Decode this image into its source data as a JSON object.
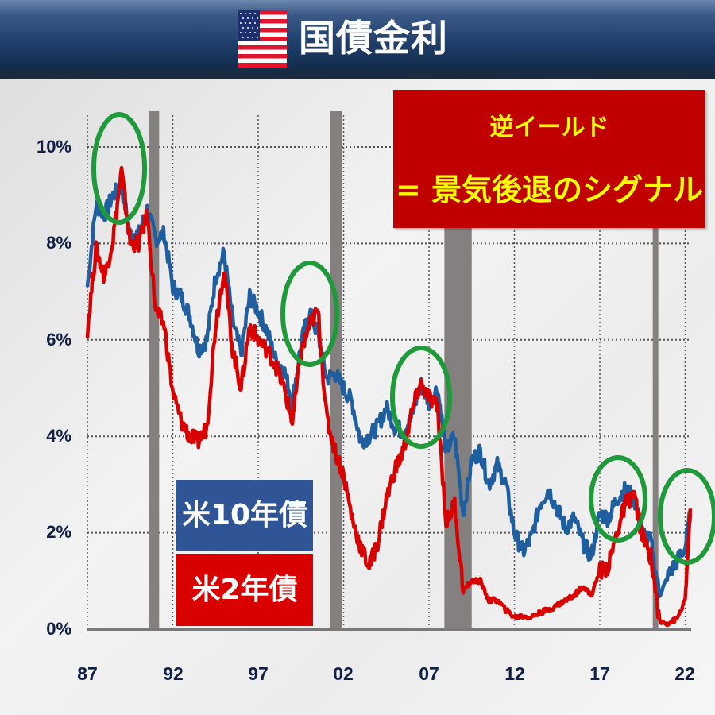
{
  "header": {
    "title": "国債金利",
    "flag_icon": "us-flag-icon",
    "background_color": "#1f3e6b"
  },
  "callout": {
    "line1": "逆イールド",
    "line2": "= 景気後退のシグナル",
    "background_color": "#c00000",
    "text_color": "#ffff00"
  },
  "legend": {
    "series_10y": "米10年債",
    "series_2y": "米2年債",
    "color_10y": "#2f5597",
    "color_2y": "#d90000"
  },
  "axes": {
    "y_ticks": [
      "0%",
      "2%",
      "4%",
      "6%",
      "8%",
      "10%"
    ],
    "x_ticks": [
      "87",
      "92",
      "97",
      "02",
      "07",
      "12",
      "17",
      "22"
    ]
  },
  "chart_data": {
    "type": "line",
    "title": "国債金利",
    "xlabel": "",
    "ylabel": "",
    "ylim": [
      0,
      10.5
    ],
    "xlim": [
      1987,
      2022.3
    ],
    "grid": true,
    "legend_position": "lower-left (inside plot)",
    "x_tick_labels": [
      "87",
      "92",
      "97",
      "02",
      "07",
      "12",
      "17",
      "22"
    ],
    "y_tick_labels": [
      "0%",
      "2%",
      "4%",
      "6%",
      "8%",
      "10%"
    ],
    "recession_bands": [
      [
        1990.6,
        1991.2
      ],
      [
        2001.2,
        2001.9
      ],
      [
        2007.9,
        2009.5
      ],
      [
        2020.1,
        2020.4
      ]
    ],
    "annotations": [
      "逆イールド = 景気後退のシグナル",
      "green circles marking inversions at ~1989, ~2000, ~2006-07, ~2019, ~2022"
    ],
    "x": [
      1987.0,
      1987.5,
      1988.0,
      1988.5,
      1989.0,
      1989.5,
      1990.0,
      1990.5,
      1991.0,
      1991.5,
      1992.0,
      1992.5,
      1993.0,
      1993.5,
      1994.0,
      1994.5,
      1995.0,
      1995.5,
      1996.0,
      1996.5,
      1997.0,
      1997.5,
      1998.0,
      1998.5,
      1999.0,
      1999.5,
      2000.0,
      2000.5,
      2001.0,
      2001.5,
      2002.0,
      2002.5,
      2003.0,
      2003.5,
      2004.0,
      2004.5,
      2005.0,
      2005.5,
      2006.0,
      2006.5,
      2007.0,
      2007.5,
      2008.0,
      2008.5,
      2009.0,
      2009.5,
      2010.0,
      2010.5,
      2011.0,
      2011.5,
      2012.0,
      2012.5,
      2013.0,
      2013.5,
      2014.0,
      2014.5,
      2015.0,
      2015.5,
      2016.0,
      2016.5,
      2017.0,
      2017.5,
      2018.0,
      2018.5,
      2019.0,
      2019.5,
      2020.0,
      2020.5,
      2021.0,
      2021.5,
      2022.0,
      2022.3
    ],
    "series": [
      {
        "name": "米10年債",
        "color": "#1f5fa0",
        "values": [
          7.1,
          8.8,
          8.6,
          9.0,
          9.2,
          8.2,
          8.2,
          8.7,
          8.1,
          8.2,
          7.1,
          6.9,
          6.5,
          5.8,
          6.0,
          7.3,
          7.8,
          6.4,
          5.7,
          6.9,
          6.6,
          6.2,
          5.6,
          5.4,
          4.7,
          5.9,
          6.6,
          6.1,
          5.2,
          5.3,
          5.0,
          4.7,
          3.9,
          4.0,
          4.2,
          4.6,
          4.2,
          4.1,
          4.4,
          5.1,
          4.7,
          5.0,
          3.7,
          4.0,
          2.4,
          3.5,
          3.7,
          3.0,
          3.4,
          3.0,
          2.0,
          1.6,
          1.9,
          2.6,
          2.9,
          2.5,
          2.1,
          2.3,
          1.8,
          1.5,
          2.4,
          2.3,
          2.7,
          2.9,
          2.7,
          2.0,
          1.8,
          0.7,
          1.1,
          1.4,
          1.7,
          2.4
        ]
      },
      {
        "name": "米2年債",
        "color": "#d90000",
        "values": [
          6.2,
          7.9,
          7.3,
          8.1,
          9.5,
          8.0,
          8.0,
          8.6,
          6.6,
          6.3,
          4.9,
          4.3,
          4.0,
          3.9,
          4.2,
          6.3,
          7.5,
          5.8,
          5.0,
          6.3,
          6.0,
          5.8,
          5.5,
          5.0,
          4.3,
          5.7,
          6.3,
          6.6,
          4.4,
          3.7,
          3.2,
          2.3,
          1.7,
          1.3,
          1.8,
          2.7,
          3.3,
          3.7,
          4.5,
          5.1,
          4.8,
          4.6,
          2.2,
          2.6,
          0.8,
          1.0,
          1.0,
          0.6,
          0.6,
          0.4,
          0.25,
          0.27,
          0.25,
          0.35,
          0.4,
          0.5,
          0.6,
          0.7,
          0.9,
          0.7,
          1.2,
          1.3,
          2.0,
          2.6,
          2.8,
          1.9,
          1.5,
          0.15,
          0.13,
          0.2,
          0.6,
          2.5
        ]
      }
    ]
  }
}
